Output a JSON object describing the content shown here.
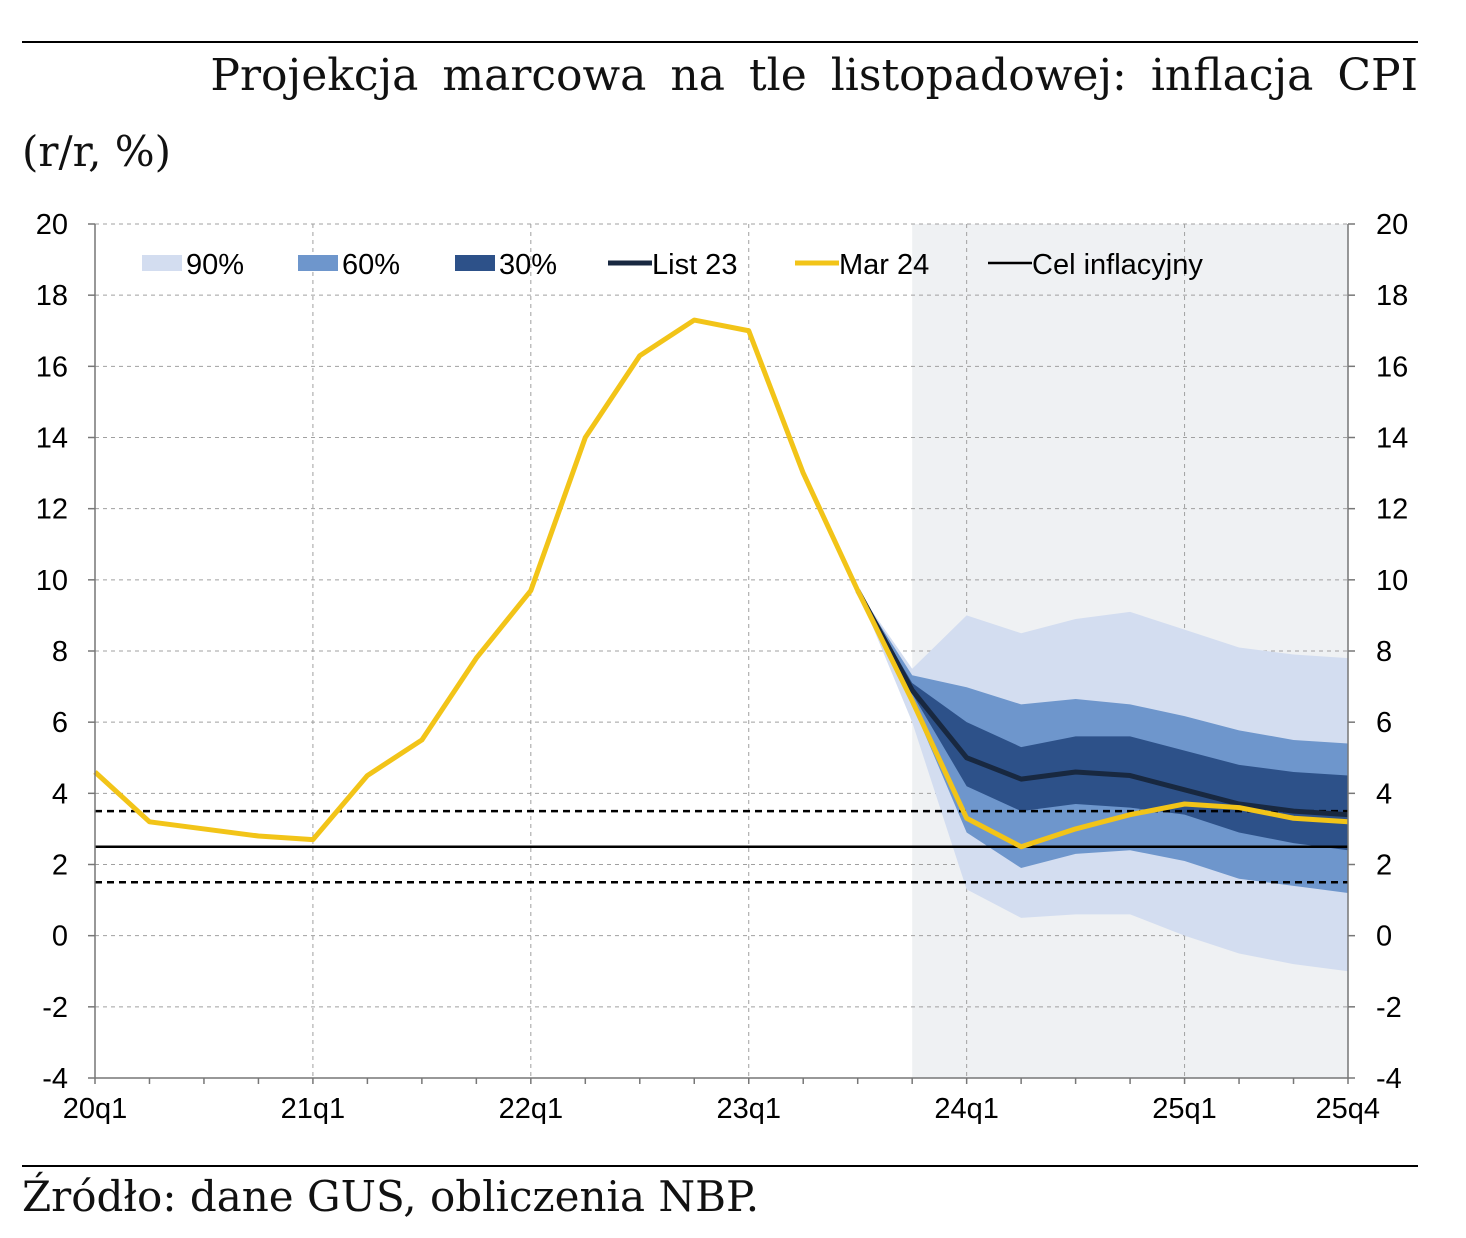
{
  "title": "Projekcja marcowa na tle listopadowej: inflacja CPI",
  "unit_label": "(r/r, %)",
  "source": "Źródło: dane GUS, obliczenia NBP.",
  "colors": {
    "band90": "#d3ddf0",
    "band60": "#6e96cc",
    "band30": "#2d5189",
    "list23": "#182840",
    "mar24": "#f2c418",
    "target": "#000000",
    "projection_bg": "#eff1f3",
    "grid": "#a0a0a0"
  },
  "chart_data": {
    "type": "line",
    "title": "Projekcja marcowa na tle listopadowej: inflacja CPI",
    "ylabel": "(r/r, %)",
    "xlabel": "",
    "ylim": [
      -4,
      20
    ],
    "yticks": [
      "-4",
      "-2",
      "0",
      "2",
      "4",
      "6",
      "8",
      "10",
      "12",
      "14",
      "16",
      "18",
      "20"
    ],
    "x": [
      "20q1",
      "20q2",
      "20q3",
      "20q4",
      "21q1",
      "21q2",
      "21q3",
      "21q4",
      "22q1",
      "22q2",
      "22q3",
      "22q4",
      "23q1",
      "23q2",
      "23q3",
      "23q4",
      "24q1",
      "24q2",
      "24q3",
      "24q4",
      "25q1",
      "25q2",
      "25q3",
      "25q4"
    ],
    "xtick_labels": [
      "20q1",
      "21q1",
      "22q1",
      "23q1",
      "24q1",
      "25q1",
      "25q4"
    ],
    "projection_start": "23q4",
    "grid": true,
    "legend_position": "top",
    "legend": [
      "90%",
      "60%",
      "30%",
      "List 23",
      "Mar 24",
      "Cel inflacyjny"
    ],
    "series": [
      {
        "name": "Mar 24",
        "values": [
          4.6,
          3.2,
          3.0,
          2.8,
          2.7,
          4.5,
          5.5,
          7.8,
          9.7,
          14.0,
          16.3,
          17.3,
          17.0,
          13.0,
          9.7,
          6.6,
          3.3,
          2.5,
          3.0,
          3.4,
          3.7,
          3.6,
          3.3,
          3.2
        ]
      },
      {
        "name": "List 23",
        "values": [
          null,
          null,
          null,
          null,
          null,
          null,
          null,
          null,
          null,
          null,
          null,
          null,
          null,
          null,
          9.7,
          6.9,
          5.0,
          4.4,
          4.6,
          4.5,
          4.1,
          3.7,
          3.5,
          3.4
        ]
      },
      {
        "name": "Cel inflacyjny",
        "values": 2.5,
        "tolerance_band": [
          1.5,
          3.5
        ]
      }
    ],
    "fan_bands": {
      "x": [
        "23q3",
        "23q4",
        "24q1",
        "24q2",
        "24q3",
        "24q4",
        "25q1",
        "25q2",
        "25q3",
        "25q4"
      ],
      "90%": {
        "lower": [
          9.7,
          6.0,
          1.3,
          0.5,
          0.6,
          0.6,
          0.0,
          -0.5,
          -0.8,
          -1.0
        ],
        "upper": [
          9.7,
          7.5,
          9.0,
          8.5,
          8.9,
          9.1,
          8.6,
          8.1,
          7.9,
          7.8
        ]
      },
      "60%": {
        "lower": [
          9.7,
          6.5,
          2.9,
          1.9,
          2.3,
          2.4,
          2.1,
          1.6,
          1.4,
          1.2
        ]
      },
      "30%": {
        "lower": [
          9.7,
          6.8,
          4.2,
          3.5,
          3.7,
          3.6,
          3.4,
          2.9,
          2.6,
          2.4
        ],
        "upper": [
          9.7,
          7.1,
          6.0,
          5.3,
          5.6,
          5.6,
          5.2,
          4.8,
          4.6,
          4.5
        ]
      }
    }
  }
}
